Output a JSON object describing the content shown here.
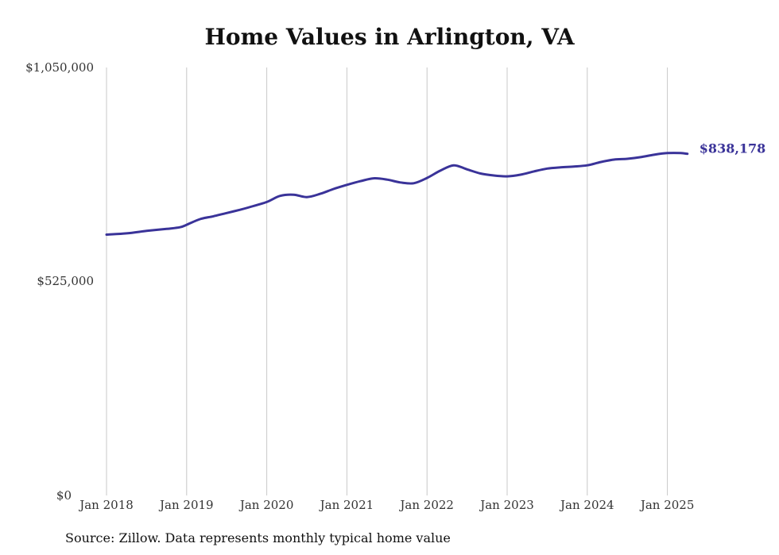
{
  "chart_data": {
    "type": "line",
    "title": "Home Values in Arlington, VA",
    "source_note": "Source: Zillow. Data represents monthly typical home value",
    "y_ticks": [
      "$1,050,000",
      "$525,000",
      "$0"
    ],
    "ylim": [
      0,
      1050000
    ],
    "x_ticks": [
      "Jan 2018",
      "Jan 2019",
      "Jan 2020",
      "Jan 2021",
      "Jan 2022",
      "Jan 2023",
      "Jan 2024",
      "Jan 2025"
    ],
    "grid": "vertical lines at each January",
    "end_label": "$838,178",
    "line_color": "#3a3399",
    "series": [
      {
        "x": [
          "2018-01",
          "2018-04",
          "2018-07",
          "2018-10",
          "2018-12",
          "2019-01",
          "2019-03",
          "2019-05",
          "2019-07",
          "2019-09",
          "2019-11",
          "2020-01",
          "2020-03",
          "2020-05",
          "2020-07",
          "2020-09",
          "2020-11",
          "2021-01",
          "2021-03",
          "2021-05",
          "2021-07",
          "2021-09",
          "2021-11",
          "2022-01",
          "2022-03",
          "2022-05",
          "2022-07",
          "2022-09",
          "2022-11",
          "2023-01",
          "2023-03",
          "2023-05",
          "2023-07",
          "2023-09",
          "2023-11",
          "2024-01",
          "2024-03",
          "2024-05",
          "2024-07",
          "2024-09",
          "2024-11",
          "2025-01",
          "2025-03",
          "2025-04"
        ],
        "values": [
          640000,
          643000,
          649000,
          654000,
          658000,
          664000,
          678000,
          685000,
          693000,
          701000,
          710000,
          720000,
          735000,
          738000,
          732000,
          740000,
          752000,
          762000,
          771000,
          778000,
          775000,
          768000,
          766000,
          779000,
          797000,
          810000,
          800000,
          790000,
          785000,
          783000,
          787000,
          795000,
          802000,
          805000,
          807000,
          810000,
          818000,
          824000,
          826000,
          830000,
          836000,
          840000,
          840000,
          838178
        ]
      }
    ]
  }
}
